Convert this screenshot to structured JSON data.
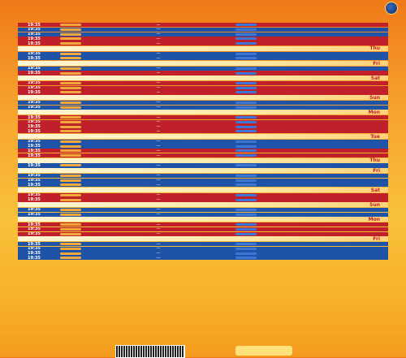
{
  "header": {
    "logo_text": "",
    "sub_text": "",
    "slogan": "",
    "title": "",
    "title_accent": ""
  },
  "schedule": [
    {
      "type": "match",
      "color": "red",
      "time": "19:35",
      "team_left": "",
      "team_right": "",
      "round": ""
    },
    {
      "type": "match",
      "color": "blue",
      "time": "19:35",
      "team_left": "",
      "team_right": "",
      "round": ""
    },
    {
      "type": "match",
      "color": "blue",
      "time": "19:35",
      "team_left": "",
      "team_right": "",
      "round": ""
    },
    {
      "type": "match",
      "color": "red",
      "time": "19:35",
      "team_left": "",
      "team_right": "",
      "round": ""
    },
    {
      "type": "match",
      "color": "red",
      "time": "19:35",
      "team_left": "",
      "team_right": "",
      "round": ""
    },
    {
      "type": "date",
      "date_left": "",
      "date_right": "Thu"
    },
    {
      "type": "match",
      "color": "blue",
      "time": "19:35",
      "team_left": "",
      "team_right": "",
      "round": ""
    },
    {
      "type": "match",
      "color": "blue",
      "time": "19:35",
      "team_left": "",
      "team_right": "",
      "round": ""
    },
    {
      "type": "date",
      "date_left": "",
      "date_right": "Fri"
    },
    {
      "type": "match",
      "color": "blue",
      "time": "19:35",
      "team_left": "",
      "team_right": "",
      "round": ""
    },
    {
      "type": "match",
      "color": "red",
      "time": "19:35",
      "team_left": "",
      "team_right": "",
      "round": ""
    },
    {
      "type": "date",
      "date_left": "",
      "date_right": "Sat"
    },
    {
      "type": "match",
      "color": "red",
      "time": "19:35",
      "team_left": "",
      "team_right": "",
      "round": ""
    },
    {
      "type": "match",
      "color": "red",
      "time": "19:35",
      "team_left": "",
      "team_right": "",
      "round": ""
    },
    {
      "type": "match",
      "color": "red",
      "time": "19:35",
      "team_left": "",
      "team_right": "",
      "round": ""
    },
    {
      "type": "date",
      "date_left": "",
      "date_right": "Sun"
    },
    {
      "type": "match",
      "color": "blue",
      "time": "19:35",
      "team_left": "",
      "team_right": "",
      "round": ""
    },
    {
      "type": "match",
      "color": "blue",
      "time": "19:35",
      "team_left": "",
      "team_right": "",
      "round": ""
    },
    {
      "type": "date",
      "date_left": "",
      "date_right": "Mon"
    },
    {
      "type": "match",
      "color": "red",
      "time": "19:35",
      "team_left": "",
      "team_right": "",
      "round": ""
    },
    {
      "type": "match",
      "color": "red",
      "time": "19:35",
      "team_left": "",
      "team_right": "",
      "round": ""
    },
    {
      "type": "match",
      "color": "red",
      "time": "19:35",
      "team_left": "",
      "team_right": "",
      "round": ""
    },
    {
      "type": "match",
      "color": "red",
      "time": "19:35",
      "team_left": "",
      "team_right": "",
      "round": ""
    },
    {
      "type": "date",
      "date_left": "",
      "date_right": "Tue"
    },
    {
      "type": "match",
      "color": "blue",
      "time": "19:35",
      "team_left": "",
      "team_right": "",
      "round": ""
    },
    {
      "type": "match",
      "color": "blue",
      "time": "19:35",
      "team_left": "",
      "team_right": "",
      "round": ""
    },
    {
      "type": "match",
      "color": "red",
      "time": "19:35",
      "team_left": "",
      "team_right": "",
      "round": ""
    },
    {
      "type": "match",
      "color": "red",
      "time": "19:35",
      "team_left": "",
      "team_right": "",
      "round": ""
    },
    {
      "type": "date",
      "date_left": "",
      "date_right": "Thu"
    },
    {
      "type": "match",
      "color": "blue",
      "time": "19:35",
      "team_left": "",
      "team_right": "",
      "round": ""
    },
    {
      "type": "date",
      "date_left": "",
      "date_right": "Fri"
    },
    {
      "type": "match",
      "color": "blue",
      "time": "19:35",
      "team_left": "",
      "team_right": "",
      "round": ""
    },
    {
      "type": "match",
      "color": "blue",
      "time": "19:35",
      "team_left": "",
      "team_right": "",
      "round": ""
    },
    {
      "type": "match",
      "color": "blue",
      "time": "19:35",
      "team_left": "",
      "team_right": "",
      "round": ""
    },
    {
      "type": "date",
      "date_left": "",
      "date_right": "Sat"
    },
    {
      "type": "match",
      "color": "red",
      "time": "19:35",
      "team_left": "",
      "team_right": "",
      "round": ""
    },
    {
      "type": "match",
      "color": "red",
      "time": "19:35",
      "team_left": "",
      "team_right": "",
      "round": ""
    },
    {
      "type": "date",
      "date_left": "",
      "date_right": "Sun"
    },
    {
      "type": "match",
      "color": "blue",
      "time": "19:35",
      "team_left": "",
      "team_right": "",
      "round": ""
    },
    {
      "type": "match",
      "color": "blue",
      "time": "19:35",
      "team_left": "",
      "team_right": "",
      "round": ""
    },
    {
      "type": "date",
      "date_left": "",
      "date_right": "Mon"
    },
    {
      "type": "match",
      "color": "red",
      "time": "19:35",
      "team_left": "",
      "team_right": "",
      "round": ""
    },
    {
      "type": "match",
      "color": "red",
      "time": "19:35",
      "team_left": "",
      "team_right": "",
      "round": ""
    },
    {
      "type": "match",
      "color": "red",
      "time": "19:35",
      "team_left": "",
      "team_right": "",
      "round": ""
    },
    {
      "type": "date",
      "date_left": "",
      "date_right": "Fri"
    },
    {
      "type": "match",
      "color": "blue",
      "time": "19:35",
      "team_left": "",
      "team_right": "",
      "round": ""
    },
    {
      "type": "match",
      "color": "blue",
      "time": "19:35",
      "team_left": "",
      "team_right": "",
      "round": ""
    },
    {
      "type": "match",
      "color": "blue",
      "time": "19:35",
      "team_left": "",
      "team_right": "",
      "round": ""
    },
    {
      "type": "match",
      "color": "blue",
      "time": "19:35",
      "team_left": "",
      "team_right": "",
      "round": ""
    }
  ],
  "footer": {
    "note": "",
    "qr_label": "",
    "sponsor": ""
  },
  "colors": {
    "blue": "#1f53a8",
    "red": "#c0202a",
    "gold": "#ffe066",
    "orange": "#f39a1e"
  }
}
